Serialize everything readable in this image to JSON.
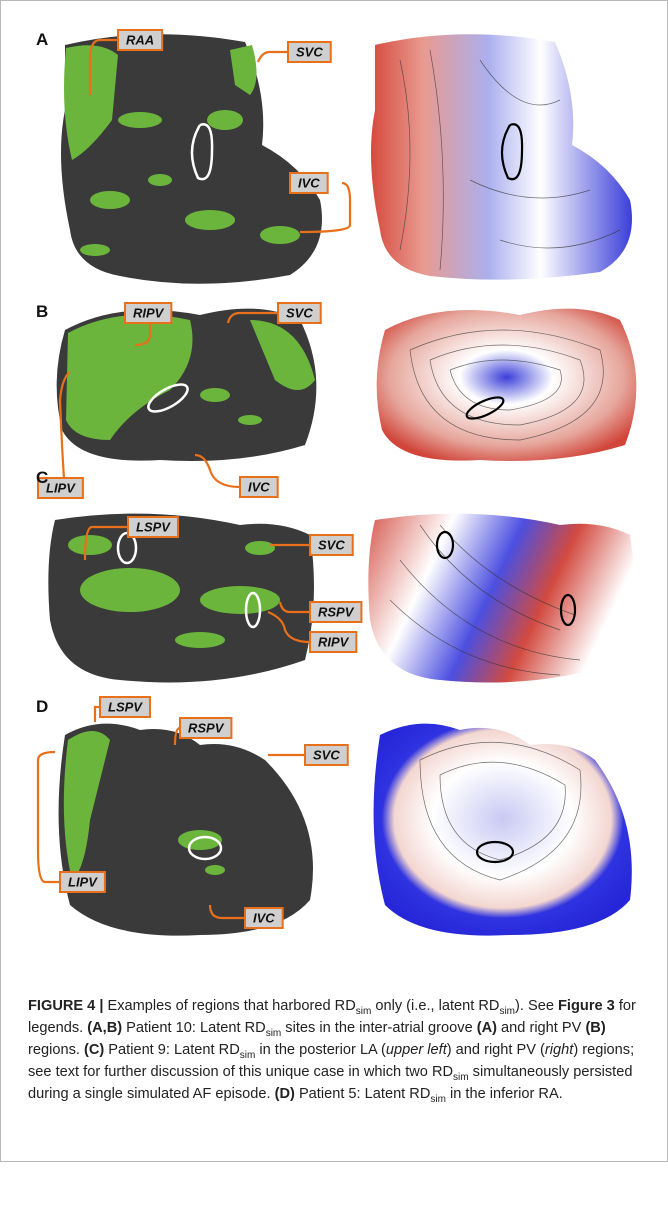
{
  "panels": [
    {
      "letter": "A",
      "labels": [
        "RAA",
        "SVC",
        "IVC"
      ]
    },
    {
      "letter": "B",
      "labels": [
        "RIPV",
        "SVC",
        "LIPV",
        "IVC"
      ]
    },
    {
      "letter": "C",
      "labels": [
        "LSPV",
        "SVC",
        "RSPV",
        "RIPV"
      ]
    },
    {
      "letter": "D",
      "labels": [
        "LSPV",
        "RSPV",
        "SVC",
        "LIPV",
        "IVC"
      ]
    }
  ],
  "caption": {
    "segments": [
      "FIGURE 4 |",
      " Examples of regions that harbored RD",
      "sim",
      " only (i.e., latent RD",
      "sim",
      "). See ",
      "Figure 3",
      " for legends. ",
      "(A,B)",
      " Patient 10: Latent RD",
      "sim",
      " sites in the inter-atrial groove ",
      "(A)",
      " and right PV ",
      "(B)",
      " regions. ",
      "(C)",
      " Patient 9: Latent RD",
      "sim",
      " in the posterior LA (",
      "upper left",
      ") and right PV (",
      "right",
      ") regions; see text for further discussion of this unique case in which two RD",
      "sim",
      " simultaneously persisted during a single simulated AF episode. ",
      "(D)",
      " Patient 5: Latent RD",
      "sim",
      " in the inferior RA."
    ]
  }
}
